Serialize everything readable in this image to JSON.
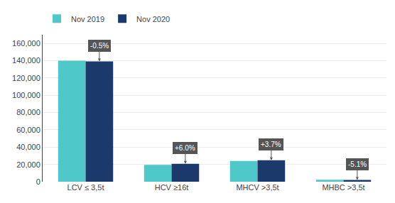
{
  "chart_data": {
    "type": "bar",
    "categories": [
      "LCV ≤ 3,5t",
      "HCV ≥16t",
      "MHCV >3,5t",
      "MHBC >3,5t"
    ],
    "series": [
      {
        "name": "Nov 2019",
        "color": "#4EC8C8",
        "values": [
          140000,
          19500,
          24000,
          2200
        ]
      },
      {
        "name": "Nov 2020",
        "color": "#1B3A6B",
        "values": [
          139300,
          20670,
          24888,
          2088
        ]
      }
    ],
    "annotations": [
      {
        "category": "LCV ≤ 3,5t",
        "series": "Nov 2020",
        "text": "-0.5%"
      },
      {
        "category": "HCV ≥16t",
        "series": "Nov 2020",
        "text": "+6.0%"
      },
      {
        "category": "MHCV >3,5t",
        "series": "Nov 2020",
        "text": "+3.7%"
      },
      {
        "category": "MHBC >3,5t",
        "series": "Nov 2020",
        "text": "-5.1%"
      }
    ],
    "ylim": [
      0,
      170000
    ],
    "yticks": [
      0,
      {
        "value": 20000,
        "label": "20,000"
      },
      {
        "value": 40000,
        "label": "40,000"
      },
      {
        "value": 60000,
        "label": "60,000"
      },
      {
        "value": 80000,
        "label": "80,000"
      },
      {
        "value": 100000,
        "label": "100,000"
      },
      {
        "value": 120000,
        "label": "120,000"
      },
      {
        "value": 140000,
        "label": "140,000"
      },
      {
        "value": 160000,
        "label": "160,000"
      }
    ],
    "grid": true,
    "legend": "upper left"
  }
}
